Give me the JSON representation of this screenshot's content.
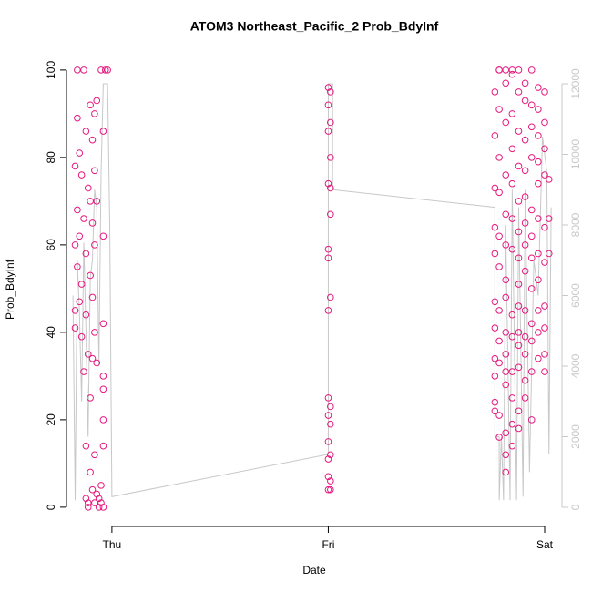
{
  "chart_data": {
    "type": "scatter",
    "title": "ATOM3 Northeast_Pacific_2 Prob_BdyInf",
    "x_label": "Date",
    "y_label": "Prob_BdyInf",
    "xlim": [
      -0.21,
      2.08
    ],
    "xticks": [
      {
        "value": 0,
        "label": "Thu"
      },
      {
        "value": 1,
        "label": "Fri"
      },
      {
        "value": 2,
        "label": "Sat"
      }
    ],
    "ylim": [
      -4.4,
      103.1
    ],
    "yticks": [
      0,
      20,
      40,
      60,
      80,
      100
    ],
    "y2lim": [
      -542,
      12774
    ],
    "y2ticks": [
      0,
      2000,
      4000,
      6000,
      8000,
      10000,
      12000
    ],
    "series": [
      {
        "type": "line",
        "axis": "y2",
        "color": "#c8c8c8",
        "x": [
          -0.18,
          -0.17,
          -0.16,
          -0.15,
          -0.14,
          -0.13,
          -0.12,
          -0.11,
          -0.1,
          -0.09,
          -0.08,
          -0.07,
          -0.06,
          -0.05,
          -0.04,
          -0.02,
          -0.01,
          0.0,
          1.0,
          1.0,
          1.02,
          1.02,
          1.77,
          1.77,
          1.79,
          1.79,
          1.8,
          1.81,
          1.82,
          1.84,
          1.85,
          1.87,
          1.88,
          1.9,
          1.91,
          1.93,
          1.95,
          1.97,
          1.99,
          2.01,
          2.02,
          2.03
        ],
        "values": [
          6000,
          200,
          7000,
          5500,
          3000,
          7500,
          5000,
          2000,
          6500,
          7000,
          9000,
          8500,
          4000,
          9500,
          12000,
          12000,
          8000,
          300,
          1500,
          12000,
          12000,
          9000,
          8500,
          2000,
          2000,
          200,
          2000,
          200,
          8000,
          200,
          9000,
          200,
          8500,
          300,
          9000,
          1000,
          7000,
          6000,
          10500,
          9500,
          1500,
          8500
        ]
      },
      {
        "type": "scatter",
        "color": "#e6197f",
        "x": [
          -0.17,
          -0.17,
          -0.17,
          -0.17,
          -0.16,
          -0.16,
          -0.16,
          -0.16,
          -0.15,
          -0.15,
          -0.15,
          -0.14,
          -0.14,
          -0.14,
          -0.13,
          -0.13,
          -0.13,
          -0.12,
          -0.12,
          -0.12,
          -0.12,
          -0.12,
          -0.11,
          -0.11,
          -0.11,
          -0.11,
          -0.1,
          -0.1,
          -0.1,
          -0.1,
          -0.1,
          -0.09,
          -0.09,
          -0.09,
          -0.09,
          -0.09,
          -0.08,
          -0.08,
          -0.08,
          -0.08,
          -0.08,
          -0.08,
          -0.07,
          -0.07,
          -0.07,
          -0.07,
          -0.06,
          -0.06,
          -0.05,
          -0.05,
          -0.05,
          -0.04,
          -0.04,
          -0.04,
          -0.04,
          -0.04,
          -0.04,
          -0.04,
          -0.04,
          -0.03,
          -0.02,
          1.0,
          1.0,
          1.0,
          1.0,
          1.0,
          1.0,
          1.0,
          1.0,
          1.0,
          1.0,
          1.0,
          1.0,
          1.0,
          1.01,
          1.01,
          1.01,
          1.01,
          1.01,
          1.01,
          1.01,
          1.01,
          1.01,
          1.01,
          1.01,
          1.77,
          1.77,
          1.77,
          1.77,
          1.77,
          1.77,
          1.77,
          1.77,
          1.77,
          1.77,
          1.77,
          1.79,
          1.79,
          1.79,
          1.79,
          1.79,
          1.79,
          1.79,
          1.79,
          1.79,
          1.79,
          1.79,
          1.79,
          1.82,
          1.82,
          1.82,
          1.82,
          1.82,
          1.82,
          1.82,
          1.82,
          1.82,
          1.82,
          1.82,
          1.82,
          1.82,
          1.82,
          1.82,
          1.85,
          1.85,
          1.85,
          1.85,
          1.85,
          1.85,
          1.85,
          1.85,
          1.85,
          1.85,
          1.85,
          1.85,
          1.85,
          1.88,
          1.88,
          1.88,
          1.88,
          1.88,
          1.88,
          1.88,
          1.88,
          1.88,
          1.88,
          1.88,
          1.88,
          1.88,
          1.88,
          1.91,
          1.91,
          1.91,
          1.91,
          1.91,
          1.91,
          1.91,
          1.91,
          1.91,
          1.91,
          1.91,
          1.91,
          1.91,
          1.94,
          1.94,
          1.94,
          1.94,
          1.94,
          1.94,
          1.94,
          1.94,
          1.94,
          1.94,
          1.94,
          1.94,
          1.97,
          1.97,
          1.97,
          1.97,
          1.97,
          1.97,
          1.97,
          1.97,
          1.97,
          1.97,
          1.97,
          2.0,
          2.0,
          2.0,
          2.0,
          2.0,
          2.0,
          2.0,
          2.0,
          2.0,
          2.0,
          2.02,
          2.02,
          2.02
        ],
        "values": [
          78,
          60,
          45,
          41,
          100,
          89,
          68,
          55,
          81,
          62,
          47,
          76,
          51,
          39,
          100,
          66,
          31,
          86,
          58,
          44,
          14,
          2,
          73,
          35,
          1,
          0,
          92,
          70,
          53,
          25,
          8,
          84,
          65,
          48,
          34,
          4,
          90,
          77,
          60,
          40,
          12,
          1,
          93,
          70,
          33,
          3,
          2,
          0,
          100,
          5,
          1,
          86,
          62,
          42,
          30,
          27,
          20,
          14,
          0,
          100,
          100,
          96,
          92,
          86,
          74,
          59,
          57,
          45,
          25,
          21,
          15,
          11,
          7,
          4,
          95,
          88,
          80,
          73,
          67,
          48,
          23,
          19,
          12,
          6,
          4,
          95,
          85,
          73,
          64,
          58,
          47,
          41,
          34,
          30,
          24,
          22,
          100,
          100,
          91,
          80,
          72,
          62,
          55,
          45,
          38,
          33,
          21,
          16,
          100,
          97,
          88,
          76,
          67,
          60,
          52,
          48,
          40,
          35,
          31,
          28,
          17,
          12,
          8,
          100,
          99,
          90,
          82,
          74,
          66,
          59,
          44,
          39,
          31,
          25,
          19,
          14,
          100,
          95,
          86,
          78,
          70,
          63,
          57,
          51,
          46,
          40,
          37,
          32,
          22,
          18,
          97,
          93,
          84,
          77,
          71,
          65,
          60,
          54,
          45,
          39,
          35,
          29,
          25,
          100,
          92,
          87,
          80,
          68,
          62,
          57,
          50,
          42,
          38,
          31,
          20,
          96,
          91,
          85,
          79,
          74,
          66,
          58,
          52,
          45,
          40,
          34,
          95,
          88,
          82,
          76,
          64,
          56,
          46,
          41,
          35,
          31,
          75,
          66,
          58
        ]
      }
    ]
  }
}
